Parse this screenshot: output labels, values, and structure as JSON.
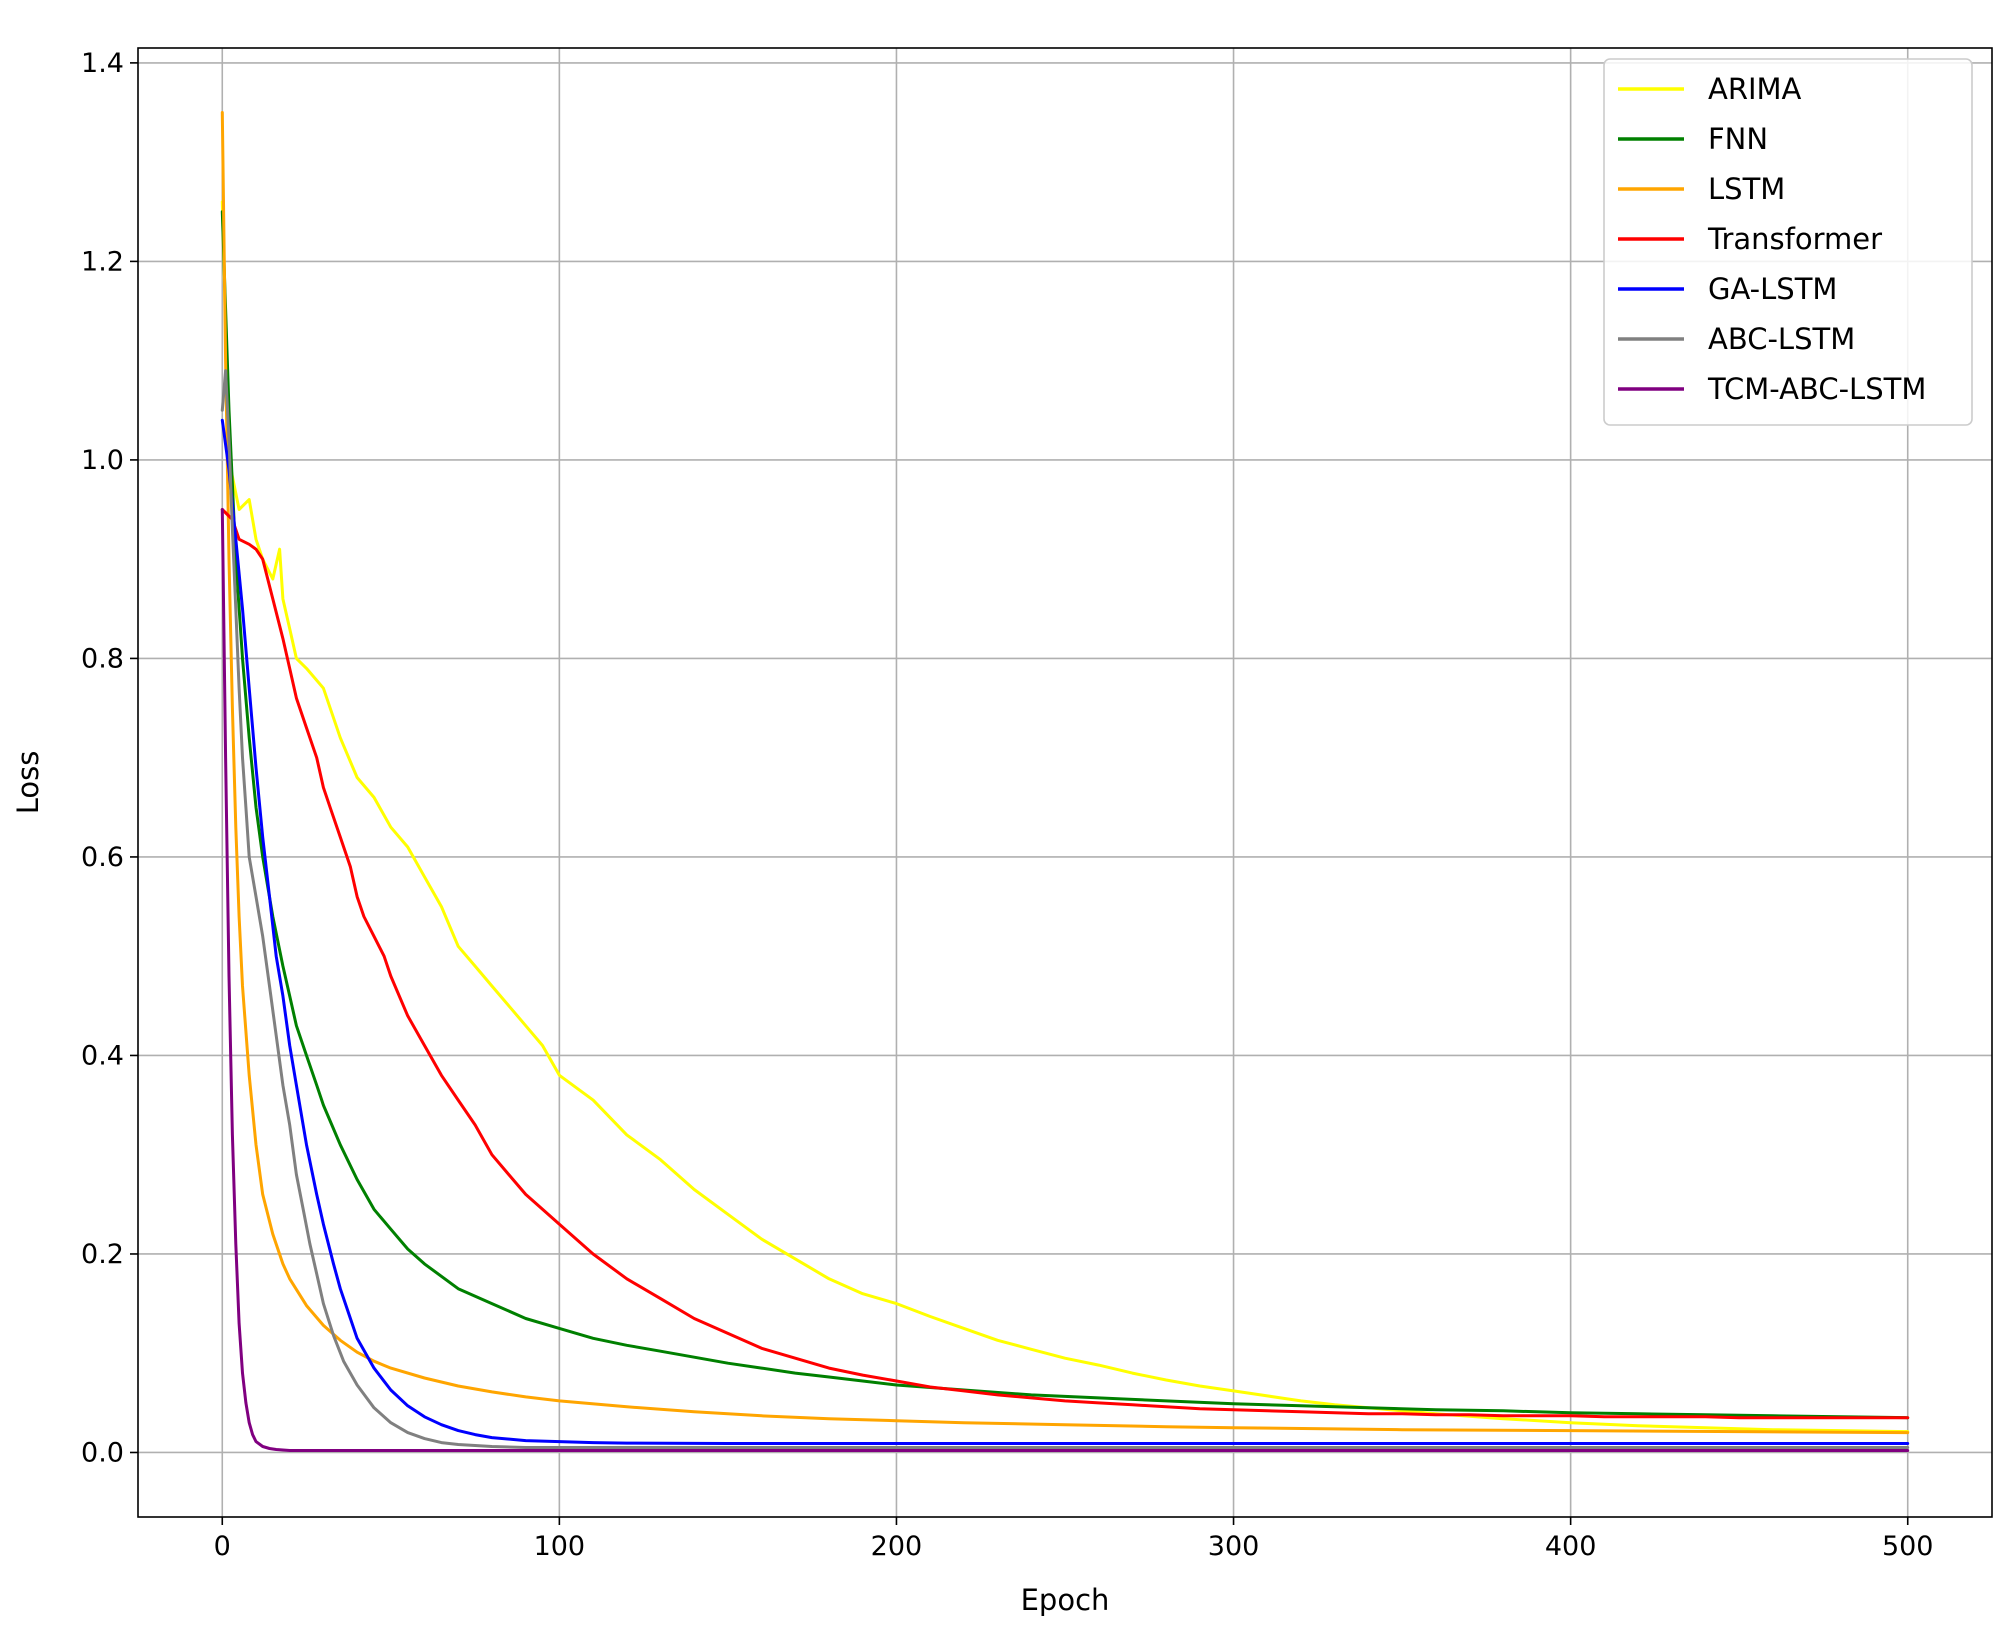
{
  "chart_data": {
    "type": "line",
    "title": "",
    "xlabel": "Epoch",
    "ylabel": "Loss",
    "xlim": [
      -25,
      525
    ],
    "ylim": [
      -0.065,
      1.415
    ],
    "xticks": [
      0,
      100,
      200,
      300,
      400,
      500
    ],
    "yticks": [
      0.0,
      0.2,
      0.4,
      0.6,
      0.8,
      1.0,
      1.2,
      1.4
    ],
    "xtick_labels": [
      "0",
      "100",
      "200",
      "300",
      "400",
      "500"
    ],
    "ytick_labels": [
      "0.0",
      "0.2",
      "0.4",
      "0.6",
      "0.8",
      "1.0",
      "1.2",
      "1.4"
    ],
    "grid": true,
    "legend_position": "top-right",
    "series": [
      {
        "name": "ARIMA",
        "color": "#ffff00",
        "x": [
          0,
          2,
          5,
          8,
          10,
          12,
          15,
          17,
          18,
          20,
          22,
          25,
          30,
          35,
          40,
          45,
          50,
          55,
          60,
          65,
          70,
          75,
          80,
          85,
          90,
          95,
          100,
          110,
          120,
          130,
          140,
          150,
          160,
          170,
          180,
          190,
          200,
          210,
          220,
          230,
          240,
          250,
          260,
          270,
          280,
          290,
          300,
          310,
          320,
          330,
          340,
          350,
          360,
          380,
          400,
          420,
          440,
          460,
          480,
          500
        ],
        "y": [
          1.26,
          1.0,
          0.95,
          0.96,
          0.92,
          0.9,
          0.88,
          0.91,
          0.86,
          0.83,
          0.8,
          0.79,
          0.77,
          0.72,
          0.68,
          0.66,
          0.63,
          0.61,
          0.58,
          0.55,
          0.51,
          0.49,
          0.47,
          0.45,
          0.43,
          0.41,
          0.38,
          0.355,
          0.32,
          0.295,
          0.265,
          0.24,
          0.215,
          0.195,
          0.175,
          0.16,
          0.15,
          0.137,
          0.125,
          0.113,
          0.104,
          0.095,
          0.088,
          0.08,
          0.073,
          0.067,
          0.062,
          0.057,
          0.052,
          0.048,
          0.045,
          0.042,
          0.039,
          0.034,
          0.03,
          0.027,
          0.025,
          0.023,
          0.022,
          0.021
        ]
      },
      {
        "name": "FNN",
        "color": "#008000",
        "x": [
          0,
          2,
          4,
          6,
          8,
          10,
          12,
          15,
          18,
          20,
          22,
          25,
          28,
          30,
          35,
          40,
          45,
          50,
          55,
          60,
          70,
          80,
          90,
          100,
          110,
          120,
          130,
          140,
          150,
          160,
          170,
          180,
          190,
          200,
          220,
          240,
          260,
          280,
          300,
          320,
          340,
          360,
          380,
          400,
          420,
          440,
          460,
          480,
          500
        ],
        "y": [
          1.25,
          1.05,
          0.9,
          0.8,
          0.72,
          0.65,
          0.6,
          0.54,
          0.49,
          0.46,
          0.43,
          0.4,
          0.37,
          0.35,
          0.31,
          0.275,
          0.245,
          0.225,
          0.205,
          0.19,
          0.165,
          0.15,
          0.135,
          0.125,
          0.115,
          0.108,
          0.102,
          0.096,
          0.09,
          0.085,
          0.08,
          0.076,
          0.072,
          0.068,
          0.063,
          0.058,
          0.055,
          0.052,
          0.049,
          0.047,
          0.045,
          0.043,
          0.042,
          0.04,
          0.039,
          0.038,
          0.037,
          0.036,
          0.035
        ]
      },
      {
        "name": "LSTM",
        "color": "#ffa500",
        "x": [
          0,
          1,
          2,
          3,
          4,
          5,
          6,
          8,
          10,
          12,
          15,
          18,
          20,
          25,
          30,
          35,
          40,
          45,
          50,
          60,
          70,
          80,
          90,
          100,
          120,
          140,
          160,
          180,
          200,
          220,
          250,
          280,
          300,
          350,
          400,
          450,
          500
        ],
        "y": [
          1.35,
          1.1,
          0.9,
          0.75,
          0.63,
          0.54,
          0.47,
          0.38,
          0.31,
          0.26,
          0.22,
          0.19,
          0.175,
          0.148,
          0.128,
          0.113,
          0.101,
          0.092,
          0.085,
          0.075,
          0.067,
          0.061,
          0.056,
          0.052,
          0.046,
          0.041,
          0.037,
          0.034,
          0.032,
          0.03,
          0.028,
          0.026,
          0.025,
          0.023,
          0.022,
          0.021,
          0.02
        ]
      },
      {
        "name": "Transformer",
        "color": "#ff0000",
        "x": [
          0,
          3,
          5,
          8,
          10,
          12,
          15,
          18,
          20,
          22,
          25,
          28,
          30,
          32,
          35,
          38,
          40,
          42,
          45,
          48,
          50,
          55,
          60,
          65,
          70,
          75,
          80,
          85,
          90,
          95,
          100,
          110,
          120,
          130,
          140,
          150,
          160,
          170,
          180,
          190,
          200,
          210,
          220,
          230,
          240,
          250,
          260,
          270,
          280,
          290,
          300,
          310,
          320,
          330,
          340,
          350,
          360,
          370,
          380,
          390,
          400,
          410,
          420,
          430,
          440,
          450,
          460,
          470,
          480,
          490,
          500
        ],
        "y": [
          0.95,
          0.94,
          0.92,
          0.915,
          0.91,
          0.9,
          0.86,
          0.82,
          0.79,
          0.76,
          0.73,
          0.7,
          0.67,
          0.65,
          0.62,
          0.59,
          0.56,
          0.54,
          0.52,
          0.5,
          0.48,
          0.44,
          0.41,
          0.38,
          0.355,
          0.33,
          0.3,
          0.28,
          0.26,
          0.245,
          0.23,
          0.2,
          0.175,
          0.155,
          0.135,
          0.12,
          0.105,
          0.095,
          0.085,
          0.078,
          0.072,
          0.066,
          0.062,
          0.058,
          0.055,
          0.052,
          0.05,
          0.048,
          0.046,
          0.044,
          0.043,
          0.042,
          0.041,
          0.04,
          0.039,
          0.039,
          0.038,
          0.038,
          0.037,
          0.037,
          0.037,
          0.036,
          0.036,
          0.036,
          0.036,
          0.035,
          0.035,
          0.035,
          0.035,
          0.035,
          0.035
        ]
      },
      {
        "name": "GA-LSTM",
        "color": "#0000ff",
        "x": [
          0,
          2,
          4,
          6,
          8,
          10,
          12,
          14,
          16,
          18,
          20,
          22,
          25,
          28,
          30,
          33,
          35,
          38,
          40,
          45,
          50,
          55,
          60,
          65,
          70,
          75,
          80,
          90,
          100,
          110,
          120,
          150,
          200,
          300,
          400,
          500
        ],
        "y": [
          1.04,
          0.99,
          0.92,
          0.85,
          0.77,
          0.69,
          0.62,
          0.56,
          0.5,
          0.46,
          0.41,
          0.37,
          0.31,
          0.26,
          0.23,
          0.19,
          0.165,
          0.135,
          0.115,
          0.085,
          0.063,
          0.047,
          0.036,
          0.028,
          0.022,
          0.018,
          0.015,
          0.012,
          0.011,
          0.01,
          0.0095,
          0.009,
          0.009,
          0.009,
          0.009,
          0.009
        ]
      },
      {
        "name": "ABC-LSTM",
        "color": "#808080",
        "x": [
          0,
          1,
          2,
          3,
          4,
          5,
          6,
          7,
          8,
          9,
          10,
          12,
          14,
          16,
          18,
          20,
          22,
          24,
          26,
          28,
          30,
          33,
          36,
          40,
          45,
          50,
          55,
          60,
          65,
          70,
          80,
          90,
          100,
          150,
          200,
          300,
          400,
          500
        ],
        "y": [
          1.05,
          1.09,
          1.02,
          0.93,
          0.85,
          0.77,
          0.7,
          0.65,
          0.6,
          0.58,
          0.56,
          0.52,
          0.47,
          0.42,
          0.37,
          0.33,
          0.28,
          0.245,
          0.21,
          0.18,
          0.15,
          0.118,
          0.092,
          0.068,
          0.045,
          0.03,
          0.02,
          0.014,
          0.01,
          0.008,
          0.006,
          0.005,
          0.005,
          0.005,
          0.005,
          0.005,
          0.005,
          0.005
        ]
      },
      {
        "name": "TCM-ABC-LSTM",
        "color": "#800080",
        "x": [
          0,
          1,
          2,
          3,
          4,
          5,
          6,
          7,
          8,
          9,
          10,
          12,
          14,
          16,
          20,
          30,
          50,
          100,
          200,
          300,
          400,
          500
        ],
        "y": [
          0.95,
          0.7,
          0.48,
          0.32,
          0.21,
          0.13,
          0.08,
          0.05,
          0.03,
          0.018,
          0.011,
          0.006,
          0.004,
          0.003,
          0.002,
          0.002,
          0.002,
          0.002,
          0.002,
          0.002,
          0.002,
          0.002
        ]
      }
    ]
  }
}
